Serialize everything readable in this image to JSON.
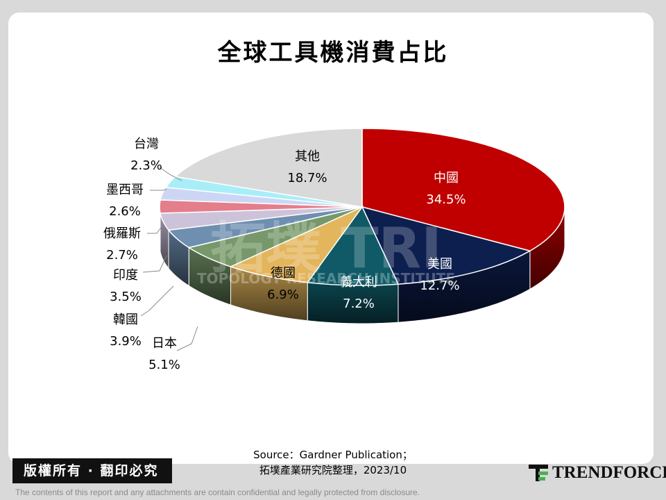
{
  "title": "全球工具機消費占比",
  "source_line1": "Source：Gardner Publication；",
  "source_line2": "拓墣產業研究院整理，2023/10",
  "copyright": "版權所有 · 翻印必究",
  "disclaimer": "The contents of this report and any attachments are contain confidential and legally protected from disclosure.",
  "logo_text": "TRENDFORCE",
  "watermark": "拓墣 TRI TOPOLOGY RESEARCH INSTITUTE",
  "chart_data": {
    "type": "pie",
    "title": "全球工具機消費占比",
    "slices": [
      {
        "name": "中國",
        "label": "34.5%",
        "value": 34.5,
        "color": "#c00000"
      },
      {
        "name": "美國",
        "label": "12.7%",
        "value": 12.7,
        "color": "#0d1f4f"
      },
      {
        "name": "義大利",
        "label": "7.2%",
        "value": 7.2,
        "color": "#0f5a66"
      },
      {
        "name": "德國",
        "label": "6.9%",
        "value": 6.9,
        "color": "#e3b55c"
      },
      {
        "name": "日本",
        "label": "5.1%",
        "value": 5.1,
        "color": "#76986a"
      },
      {
        "name": "韓國",
        "label": "3.9%",
        "value": 3.9,
        "color": "#6e8fb0"
      },
      {
        "name": "印度",
        "label": "3.5%",
        "value": 3.5,
        "color": "#ccc3da"
      },
      {
        "name": "俄羅斯",
        "label": "2.7%",
        "value": 2.7,
        "color": "#e47e8a"
      },
      {
        "name": "墨西哥",
        "label": "2.6%",
        "value": 2.6,
        "color": "#ccd6f4"
      },
      {
        "name": "台灣",
        "label": "2.3%",
        "value": 2.3,
        "color": "#a8eef8"
      },
      {
        "name": "其他",
        "label": "18.7%",
        "value": 18.7,
        "color": "#d9d9d9"
      }
    ]
  }
}
